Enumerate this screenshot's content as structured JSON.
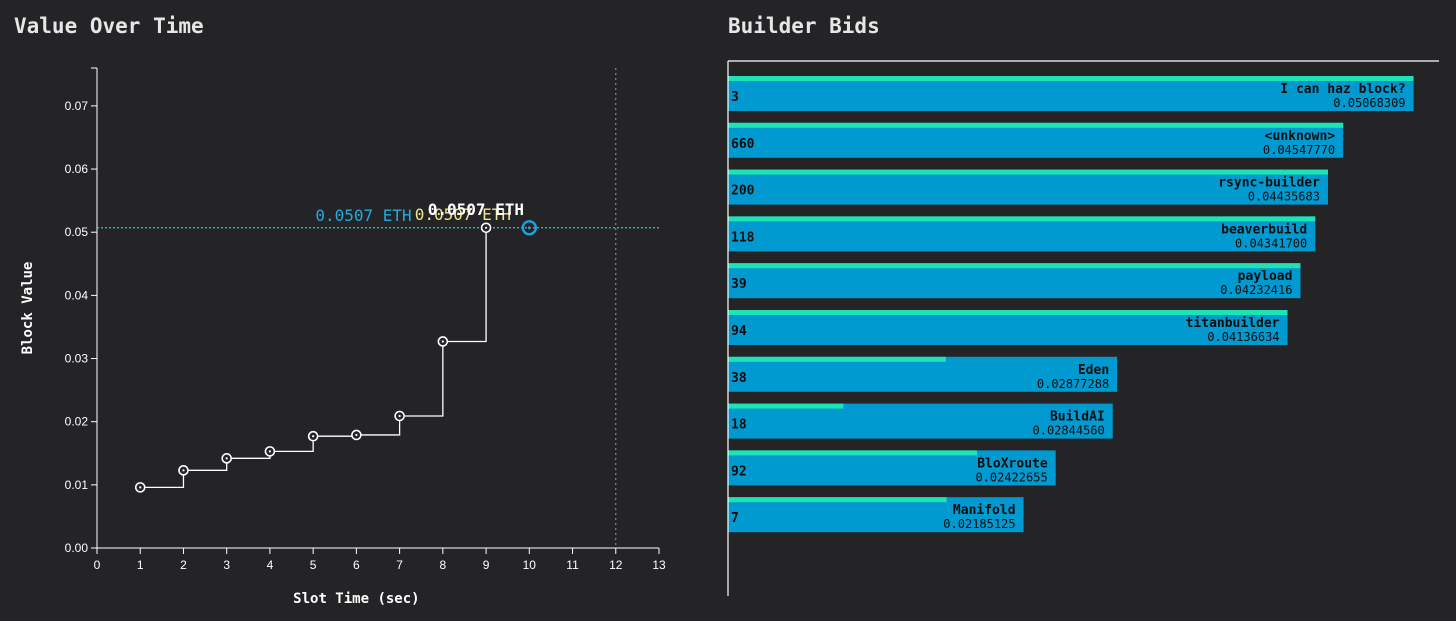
{
  "left_panel": {
    "title": "Value Over Time"
  },
  "right_panel": {
    "title": "Builder Bids"
  },
  "chart_data": [
    {
      "type": "line",
      "subtype": "step-after",
      "title": "Value Over Time",
      "xlabel": "Slot Time (sec)",
      "ylabel": "Block Value",
      "xlim": [
        0,
        13
      ],
      "ylim": [
        0,
        0.076
      ],
      "xticks": [
        "0",
        "1",
        "2",
        "3",
        "4",
        "5",
        "6",
        "7",
        "8",
        "9",
        "10",
        "11",
        "12",
        "13"
      ],
      "yticks": [
        "0.00",
        "0.01",
        "0.02",
        "0.03",
        "0.04",
        "0.05",
        "0.06",
        "0.07"
      ],
      "x": [
        1,
        2,
        3,
        4,
        5,
        6,
        7,
        8,
        9
      ],
      "y": [
        0.0096,
        0.0123,
        0.0142,
        0.0153,
        0.0177,
        0.0179,
        0.0209,
        0.0327,
        0.0507
      ],
      "highlight": {
        "x": 10,
        "y": 0.0507
      },
      "deadline_x": 12,
      "reference_y": 0.0507,
      "annotations": [
        "0.0507 ETH",
        "0.0507 ETH",
        "0.0507 ETH"
      ],
      "grid": false,
      "colors": {
        "line": "#ffffff",
        "reference": "#4cc9e6",
        "highlight": "#1aa3dc",
        "label_blue": "#25a9e0",
        "label_yellow": "#f0e68c",
        "label_white": "#ffffff"
      }
    },
    {
      "type": "bar",
      "orientation": "horizontal",
      "title": "Builder Bids",
      "categories": [
        "I can haz block?",
        "<unknown>",
        "rsync-builder",
        "beaverbuild",
        "payload",
        "titanbuilder",
        "Eden",
        "BuildAI",
        "BloXroute",
        "Manifold"
      ],
      "values": [
        0.05068309,
        0.0454777,
        0.04435683,
        0.043417,
        0.04232416,
        0.04136634,
        0.02877288,
        0.0284456,
        0.02422655,
        0.02185125
      ],
      "value_labels": [
        "0.05068309",
        "0.04547770",
        "0.04435683",
        "0.04341700",
        "0.04232416",
        "0.04136634",
        "0.02877288",
        "0.02844560",
        "0.02422655",
        "0.02185125"
      ],
      "counts": [
        "3",
        "660",
        "200",
        "118",
        "39",
        "94",
        "38",
        "18",
        "92",
        "7"
      ],
      "secondary_fraction": [
        1.0,
        1.0,
        1.0,
        1.0,
        1.0,
        1.0,
        0.56,
        0.3,
        0.76,
        0.74
      ],
      "xlim": [
        0,
        0.0519
      ],
      "colors": {
        "bar": "#0099d0",
        "secondary": "#1de4b4",
        "text": "#0e0e0e",
        "axis": "#ffffff"
      }
    }
  ]
}
